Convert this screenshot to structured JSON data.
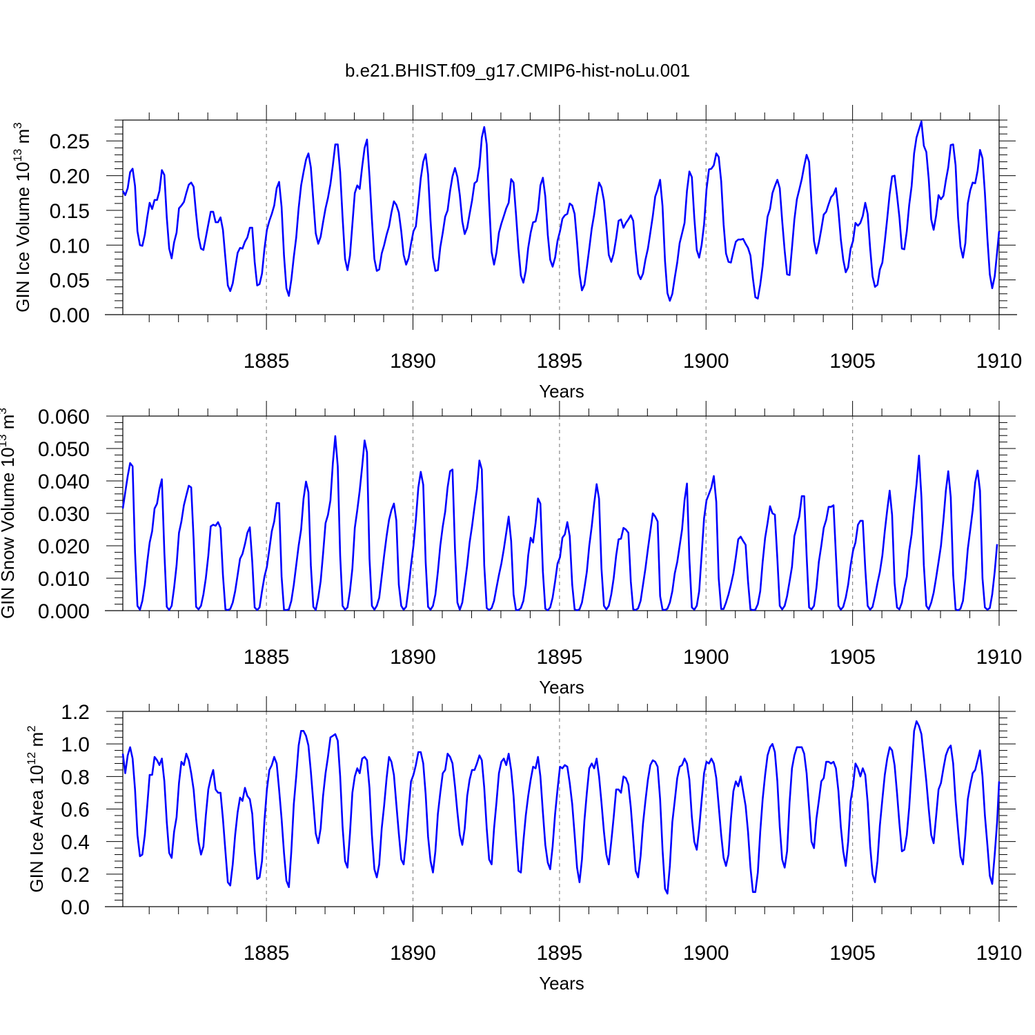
{
  "figure_title": "b.e21.BHIST.f09_g17.CMIP6-hist-noLu.001",
  "colors": {
    "series": "#0000ff",
    "axis": "#000000",
    "grid": "#888888"
  },
  "chart_data": [
    {
      "type": "line",
      "xlabel": "Years",
      "ylabel": "GIN Ice Volume 10",
      "ylabel_exp": "13",
      "ylabel_unit": " m",
      "ylabel_unit_exp": "3",
      "xlim": [
        1880.1,
        1910.0
      ],
      "ylim": [
        0,
        0.28
      ],
      "xticks": [
        1885,
        1890,
        1895,
        1900,
        1905,
        1910
      ],
      "xtick_labels": [
        "1885",
        "1890",
        "1895",
        "1900",
        "1905",
        "1910"
      ],
      "yticks": [
        0,
        0.05,
        0.1,
        0.15,
        0.2,
        0.25
      ],
      "ytick_labels": [
        "0.00",
        "0.05",
        "0.10",
        "0.15",
        "0.20",
        "0.25"
      ],
      "x_start": 1880.1,
      "x_step": 0.08333,
      "values": [
        0.178,
        0.172,
        0.182,
        0.205,
        0.21,
        0.185,
        0.12,
        0.1,
        0.099,
        0.115,
        0.14,
        0.161,
        0.152,
        0.165,
        0.165,
        0.178,
        0.208,
        0.201,
        0.14,
        0.095,
        0.081,
        0.104,
        0.118,
        0.153,
        0.157,
        0.162,
        0.175,
        0.187,
        0.19,
        0.184,
        0.145,
        0.112,
        0.095,
        0.093,
        0.111,
        0.13,
        0.148,
        0.148,
        0.133,
        0.133,
        0.14,
        0.122,
        0.081,
        0.042,
        0.034,
        0.045,
        0.067,
        0.089,
        0.096,
        0.095,
        0.105,
        0.111,
        0.125,
        0.125,
        0.076,
        0.042,
        0.044,
        0.059,
        0.095,
        0.122,
        0.135,
        0.145,
        0.157,
        0.182,
        0.191,
        0.155,
        0.085,
        0.038,
        0.027,
        0.05,
        0.083,
        0.111,
        0.153,
        0.186,
        0.205,
        0.223,
        0.232,
        0.212,
        0.164,
        0.117,
        0.102,
        0.112,
        0.133,
        0.153,
        0.168,
        0.188,
        0.215,
        0.245,
        0.245,
        0.205,
        0.14,
        0.08,
        0.064,
        0.085,
        0.13,
        0.175,
        0.186,
        0.181,
        0.213,
        0.24,
        0.252,
        0.199,
        0.137,
        0.08,
        0.063,
        0.065,
        0.088,
        0.1,
        0.115,
        0.127,
        0.147,
        0.163,
        0.158,
        0.147,
        0.12,
        0.086,
        0.072,
        0.081,
        0.102,
        0.12,
        0.127,
        0.16,
        0.196,
        0.22,
        0.231,
        0.202,
        0.135,
        0.082,
        0.063,
        0.064,
        0.097,
        0.118,
        0.141,
        0.15,
        0.178,
        0.199,
        0.211,
        0.198,
        0.172,
        0.134,
        0.116,
        0.125,
        0.145,
        0.164,
        0.189,
        0.192,
        0.213,
        0.255,
        0.27,
        0.245,
        0.162,
        0.09,
        0.072,
        0.089,
        0.118,
        0.131,
        0.142,
        0.153,
        0.161,
        0.195,
        0.19,
        0.145,
        0.095,
        0.056,
        0.046,
        0.063,
        0.096,
        0.118,
        0.133,
        0.134,
        0.15,
        0.186,
        0.197,
        0.17,
        0.115,
        0.079,
        0.069,
        0.082,
        0.106,
        0.12,
        0.138,
        0.143,
        0.145,
        0.16,
        0.157,
        0.145,
        0.105,
        0.058,
        0.035,
        0.043,
        0.068,
        0.095,
        0.124,
        0.144,
        0.17,
        0.19,
        0.183,
        0.164,
        0.128,
        0.086,
        0.076,
        0.088,
        0.11,
        0.135,
        0.137,
        0.125,
        0.132,
        0.137,
        0.143,
        0.135,
        0.092,
        0.059,
        0.051,
        0.059,
        0.079,
        0.095,
        0.118,
        0.142,
        0.17,
        0.18,
        0.194,
        0.156,
        0.077,
        0.031,
        0.02,
        0.03,
        0.053,
        0.075,
        0.103,
        0.117,
        0.132,
        0.178,
        0.206,
        0.198,
        0.14,
        0.093,
        0.082,
        0.1,
        0.13,
        0.18,
        0.209,
        0.21,
        0.215,
        0.232,
        0.227,
        0.192,
        0.13,
        0.088,
        0.076,
        0.075,
        0.091,
        0.105,
        0.108,
        0.108,
        0.109,
        0.102,
        0.096,
        0.085,
        0.052,
        0.025,
        0.023,
        0.043,
        0.07,
        0.11,
        0.141,
        0.152,
        0.175,
        0.185,
        0.194,
        0.182,
        0.135,
        0.092,
        0.058,
        0.057,
        0.096,
        0.137,
        0.166,
        0.18,
        0.195,
        0.214,
        0.23,
        0.22,
        0.16,
        0.106,
        0.088,
        0.103,
        0.123,
        0.144,
        0.148,
        0.159,
        0.169,
        0.173,
        0.182,
        0.15,
        0.108,
        0.079,
        0.061,
        0.068,
        0.095,
        0.106,
        0.132,
        0.128,
        0.132,
        0.142,
        0.161,
        0.145,
        0.095,
        0.055,
        0.04,
        0.043,
        0.065,
        0.075,
        0.105,
        0.138,
        0.174,
        0.199,
        0.2,
        0.172,
        0.14,
        0.095,
        0.094,
        0.12,
        0.158,
        0.185,
        0.232,
        0.255,
        0.267,
        0.278,
        0.243,
        0.234,
        0.195,
        0.137,
        0.122,
        0.142,
        0.172,
        0.166,
        0.171,
        0.193,
        0.212,
        0.244,
        0.245,
        0.215,
        0.14,
        0.098,
        0.082,
        0.103,
        0.16,
        0.179,
        0.19,
        0.189,
        0.207,
        0.237,
        0.225,
        0.175,
        0.11,
        0.058,
        0.038,
        0.055,
        0.09,
        0.12
      ]
    },
    {
      "type": "line",
      "xlabel": "Years",
      "ylabel": "GIN Snow Volume 10",
      "ylabel_exp": "13",
      "ylabel_unit": " m",
      "ylabel_unit_exp": "3",
      "xlim": [
        1880.1,
        1910.0
      ],
      "ylim": [
        0,
        0.06
      ],
      "xticks": [
        1885,
        1890,
        1895,
        1900,
        1905,
        1910
      ],
      "xtick_labels": [
        "1885",
        "1890",
        "1895",
        "1900",
        "1905",
        "1910"
      ],
      "yticks": [
        0,
        0.01,
        0.02,
        0.03,
        0.04,
        0.05,
        0.06
      ],
      "ytick_labels": [
        "0.000",
        "0.010",
        "0.020",
        "0.030",
        "0.040",
        "0.050",
        "0.060"
      ],
      "x_start": 1880.1,
      "x_step": 0.08333,
      "values": [
        0.0315,
        0.0365,
        0.0415,
        0.0455,
        0.0445,
        0.018,
        0.0015,
        0.0003,
        0.003,
        0.008,
        0.015,
        0.021,
        0.0245,
        0.0315,
        0.033,
        0.0375,
        0.0405,
        0.018,
        0.0012,
        0.0002,
        0.0015,
        0.007,
        0.014,
        0.024,
        0.0275,
        0.0325,
        0.0355,
        0.0385,
        0.038,
        0.022,
        0.0012,
        0.0004,
        0.0015,
        0.005,
        0.01,
        0.017,
        0.026,
        0.0265,
        0.0262,
        0.0273,
        0.0255,
        0.011,
        0.0004,
        0.0002,
        0.0005,
        0.0025,
        0.006,
        0.011,
        0.016,
        0.0175,
        0.0205,
        0.024,
        0.0257,
        0.015,
        0.001,
        0.0002,
        0.001,
        0.006,
        0.0105,
        0.0135,
        0.019,
        0.0245,
        0.0275,
        0.0332,
        0.0332,
        0.0105,
        0.0003,
        0.0002,
        0.0004,
        0.003,
        0.008,
        0.014,
        0.02,
        0.025,
        0.0345,
        0.0398,
        0.0365,
        0.014,
        0.0012,
        0.0002,
        0.004,
        0.009,
        0.0175,
        0.027,
        0.0295,
        0.034,
        0.0455,
        0.0538,
        0.0445,
        0.017,
        0.0015,
        0.0003,
        0.001,
        0.006,
        0.013,
        0.0255,
        0.031,
        0.037,
        0.0445,
        0.0525,
        0.0488,
        0.016,
        0.0015,
        0.0003,
        0.0015,
        0.004,
        0.0105,
        0.017,
        0.023,
        0.028,
        0.031,
        0.033,
        0.0278,
        0.008,
        0.0015,
        0.0003,
        0.0012,
        0.007,
        0.014,
        0.02,
        0.028,
        0.038,
        0.0428,
        0.0388,
        0.015,
        0.0012,
        0.0003,
        0.0015,
        0.005,
        0.012,
        0.02,
        0.026,
        0.0305,
        0.038,
        0.043,
        0.0435,
        0.019,
        0.0025,
        0.0003,
        0.0025,
        0.008,
        0.014,
        0.021,
        0.026,
        0.032,
        0.0375,
        0.0463,
        0.0435,
        0.014,
        0.0008,
        0.0002,
        0.0008,
        0.003,
        0.007,
        0.011,
        0.0145,
        0.019,
        0.024,
        0.029,
        0.0215,
        0.005,
        0.0002,
        0.0002,
        0.0008,
        0.003,
        0.008,
        0.017,
        0.0225,
        0.021,
        0.027,
        0.0346,
        0.033,
        0.012,
        0.0006,
        0.0001,
        0.001,
        0.004,
        0.009,
        0.0145,
        0.0165,
        0.0225,
        0.0235,
        0.0273,
        0.023,
        0.008,
        0.0004,
        0.0001,
        0.0004,
        0.0025,
        0.007,
        0.012,
        0.02,
        0.026,
        0.033,
        0.039,
        0.0345,
        0.013,
        0.0015,
        0.0004,
        0.0015,
        0.005,
        0.01,
        0.017,
        0.022,
        0.0222,
        0.0255,
        0.025,
        0.024,
        0.009,
        0.0004,
        0.0002,
        0.0007,
        0.003,
        0.008,
        0.013,
        0.019,
        0.0245,
        0.03,
        0.029,
        0.0275,
        0.0045,
        0.0003,
        0.0002,
        0.0006,
        0.0025,
        0.006,
        0.0115,
        0.015,
        0.02,
        0.025,
        0.034,
        0.0392,
        0.016,
        0.001,
        0.0003,
        0.0015,
        0.006,
        0.017,
        0.0285,
        0.034,
        0.036,
        0.038,
        0.0415,
        0.0335,
        0.01,
        0.0005,
        0.0005,
        0.0025,
        0.005,
        0.008,
        0.0115,
        0.0165,
        0.022,
        0.0228,
        0.0215,
        0.0203,
        0.009,
        0.0004,
        0.0002,
        0.0003,
        0.002,
        0.006,
        0.015,
        0.0225,
        0.027,
        0.0322,
        0.03,
        0.0296,
        0.016,
        0.0015,
        0.0004,
        0.0015,
        0.0045,
        0.009,
        0.0135,
        0.023,
        0.026,
        0.029,
        0.0353,
        0.0353,
        0.017,
        0.001,
        0.0004,
        0.0015,
        0.007,
        0.015,
        0.02,
        0.0255,
        0.028,
        0.032,
        0.032,
        0.0325,
        0.017,
        0.0015,
        0.0003,
        0.0012,
        0.004,
        0.008,
        0.014,
        0.0185,
        0.021,
        0.0265,
        0.0277,
        0.0277,
        0.013,
        0.0015,
        0.0003,
        0.0012,
        0.0045,
        0.0085,
        0.012,
        0.017,
        0.0245,
        0.031,
        0.037,
        0.0295,
        0.0085,
        0.001,
        0.0004,
        0.0025,
        0.007,
        0.0105,
        0.0185,
        0.0235,
        0.032,
        0.039,
        0.0478,
        0.035,
        0.014,
        0.0015,
        0.0004,
        0.0025,
        0.0055,
        0.01,
        0.015,
        0.02,
        0.028,
        0.037,
        0.043,
        0.035,
        0.011,
        0.0004,
        0.0001,
        0.0006,
        0.003,
        0.01,
        0.019,
        0.025,
        0.031,
        0.0395,
        0.0432,
        0.037,
        0.01,
        0.001,
        0.0003,
        0.0008,
        0.005,
        0.012,
        0.0205
      ]
    },
    {
      "type": "line",
      "xlabel": "Years",
      "ylabel": "GIN Ice Area 10",
      "ylabel_exp": "12",
      "ylabel_unit": " m",
      "ylabel_unit_exp": "2",
      "xlim": [
        1880.1,
        1910.0
      ],
      "ylim": [
        0,
        1.2
      ],
      "xticks": [
        1885,
        1890,
        1895,
        1900,
        1905,
        1910
      ],
      "xtick_labels": [
        "1885",
        "1890",
        "1895",
        "1900",
        "1905",
        "1910"
      ],
      "yticks": [
        0,
        0.2,
        0.4,
        0.6,
        0.8,
        1.0,
        1.2
      ],
      "ytick_labels": [
        "0.0",
        "0.2",
        "0.4",
        "0.6",
        "0.8",
        "1.0",
        "1.2"
      ],
      "x_start": 1880.1,
      "x_step": 0.08333,
      "values": [
        0.94,
        0.82,
        0.93,
        0.98,
        0.91,
        0.72,
        0.44,
        0.31,
        0.32,
        0.44,
        0.62,
        0.81,
        0.81,
        0.92,
        0.9,
        0.87,
        0.91,
        0.77,
        0.52,
        0.33,
        0.3,
        0.46,
        0.55,
        0.76,
        0.89,
        0.87,
        0.94,
        0.9,
        0.82,
        0.72,
        0.54,
        0.4,
        0.32,
        0.37,
        0.56,
        0.72,
        0.79,
        0.84,
        0.72,
        0.7,
        0.7,
        0.54,
        0.34,
        0.15,
        0.13,
        0.26,
        0.44,
        0.58,
        0.67,
        0.65,
        0.73,
        0.68,
        0.66,
        0.57,
        0.34,
        0.17,
        0.18,
        0.28,
        0.53,
        0.72,
        0.84,
        0.87,
        0.92,
        0.88,
        0.72,
        0.54,
        0.33,
        0.16,
        0.12,
        0.34,
        0.63,
        0.8,
        0.99,
        1.08,
        1.08,
        1.05,
        0.99,
        0.83,
        0.64,
        0.45,
        0.39,
        0.48,
        0.68,
        0.82,
        0.92,
        1.04,
        1.05,
        1.06,
        1.02,
        0.8,
        0.49,
        0.28,
        0.24,
        0.45,
        0.7,
        0.8,
        0.85,
        0.82,
        0.91,
        0.92,
        0.9,
        0.73,
        0.44,
        0.23,
        0.18,
        0.26,
        0.48,
        0.62,
        0.79,
        0.92,
        0.89,
        0.81,
        0.63,
        0.45,
        0.29,
        0.26,
        0.41,
        0.6,
        0.77,
        0.81,
        0.87,
        0.95,
        0.95,
        0.88,
        0.69,
        0.43,
        0.28,
        0.21,
        0.34,
        0.57,
        0.7,
        0.82,
        0.84,
        0.94,
        0.92,
        0.88,
        0.74,
        0.58,
        0.44,
        0.38,
        0.48,
        0.68,
        0.78,
        0.84,
        0.84,
        0.88,
        0.93,
        0.9,
        0.73,
        0.48,
        0.29,
        0.26,
        0.48,
        0.64,
        0.82,
        0.89,
        0.91,
        0.87,
        0.94,
        0.84,
        0.68,
        0.44,
        0.22,
        0.21,
        0.4,
        0.56,
        0.68,
        0.78,
        0.86,
        0.85,
        0.92,
        0.8,
        0.58,
        0.38,
        0.27,
        0.23,
        0.37,
        0.57,
        0.72,
        0.86,
        0.85,
        0.87,
        0.86,
        0.76,
        0.63,
        0.44,
        0.24,
        0.15,
        0.29,
        0.53,
        0.7,
        0.85,
        0.88,
        0.85,
        0.91,
        0.8,
        0.64,
        0.46,
        0.32,
        0.26,
        0.4,
        0.55,
        0.72,
        0.72,
        0.7,
        0.8,
        0.79,
        0.75,
        0.61,
        0.42,
        0.22,
        0.18,
        0.31,
        0.51,
        0.65,
        0.78,
        0.87,
        0.9,
        0.89,
        0.86,
        0.66,
        0.35,
        0.11,
        0.08,
        0.25,
        0.52,
        0.65,
        0.79,
        0.86,
        0.87,
        0.91,
        0.88,
        0.78,
        0.55,
        0.4,
        0.35,
        0.48,
        0.65,
        0.82,
        0.89,
        0.88,
        0.91,
        0.88,
        0.79,
        0.62,
        0.44,
        0.3,
        0.25,
        0.32,
        0.54,
        0.71,
        0.77,
        0.74,
        0.8,
        0.71,
        0.62,
        0.46,
        0.24,
        0.09,
        0.09,
        0.21,
        0.46,
        0.66,
        0.81,
        0.93,
        0.98,
        1.0,
        0.95,
        0.77,
        0.49,
        0.29,
        0.24,
        0.34,
        0.64,
        0.85,
        0.93,
        0.98,
        0.98,
        0.98,
        0.94,
        0.82,
        0.61,
        0.4,
        0.36,
        0.54,
        0.65,
        0.77,
        0.79,
        0.89,
        0.89,
        0.88,
        0.89,
        0.85,
        0.71,
        0.49,
        0.34,
        0.25,
        0.4,
        0.65,
        0.74,
        0.88,
        0.85,
        0.8,
        0.85,
        0.81,
        0.64,
        0.37,
        0.2,
        0.15,
        0.28,
        0.5,
        0.66,
        0.81,
        0.91,
        0.98,
        0.96,
        0.87,
        0.7,
        0.51,
        0.34,
        0.35,
        0.44,
        0.61,
        0.84,
        1.08,
        1.14,
        1.11,
        1.06,
        0.92,
        0.77,
        0.6,
        0.44,
        0.39,
        0.55,
        0.72,
        0.76,
        0.85,
        0.93,
        0.97,
        0.99,
        0.88,
        0.65,
        0.47,
        0.31,
        0.26,
        0.44,
        0.66,
        0.75,
        0.82,
        0.84,
        0.9,
        0.96,
        0.8,
        0.56,
        0.38,
        0.19,
        0.14,
        0.32,
        0.52,
        0.77
      ]
    }
  ]
}
